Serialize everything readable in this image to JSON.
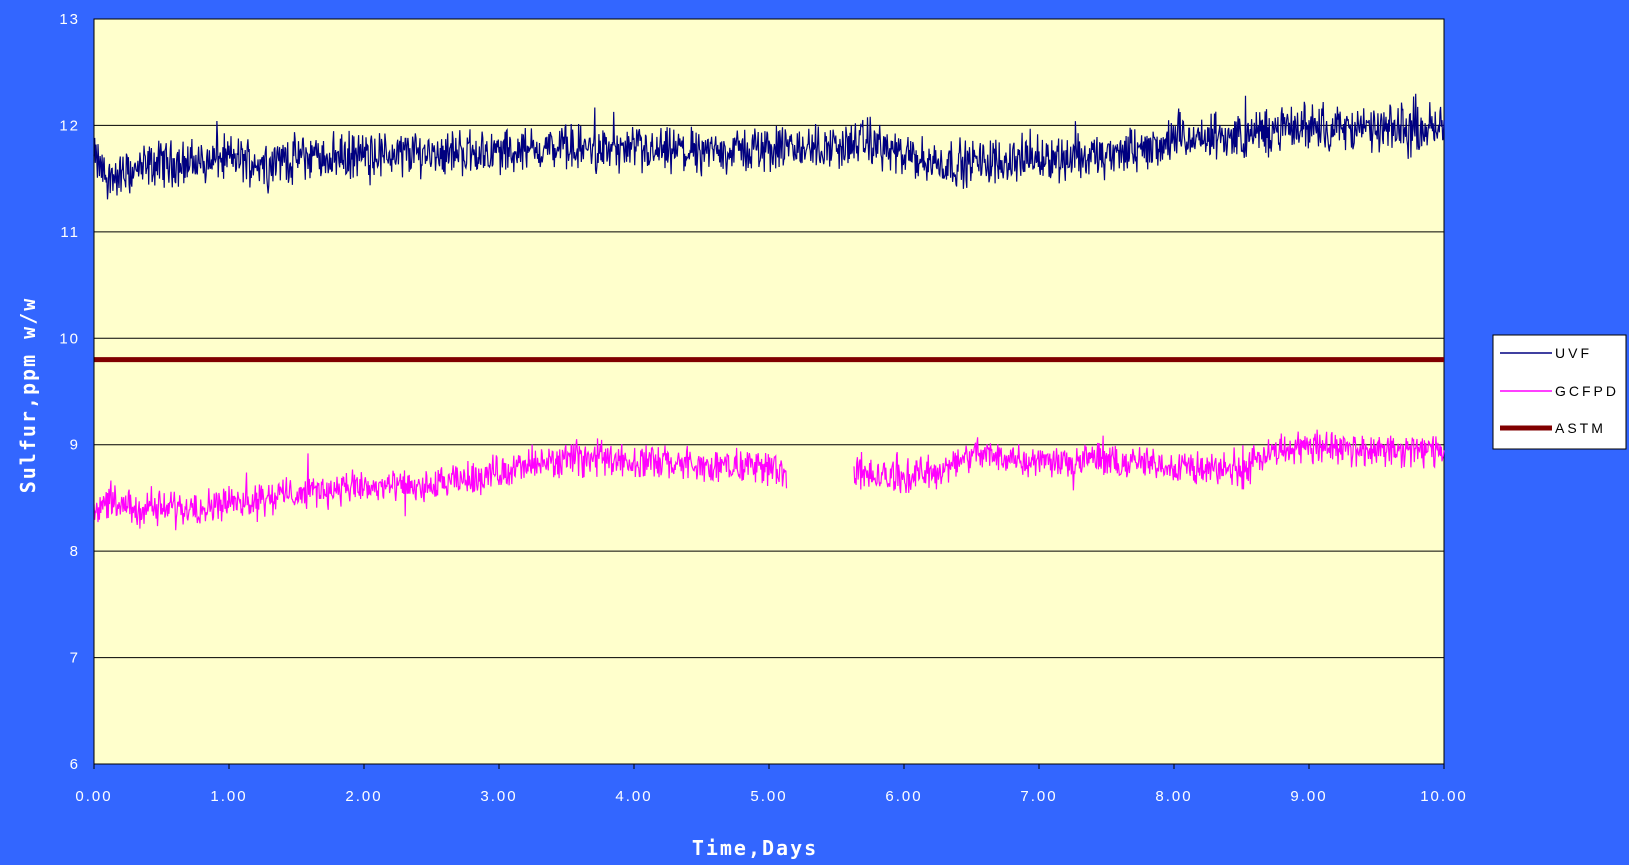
{
  "chart_data": {
    "type": "line",
    "title": "",
    "xlabel": "Time,Days",
    "ylabel": "Sulfur,ppm w/w",
    "xlim": [
      0,
      10
    ],
    "ylim": [
      6,
      13
    ],
    "x_ticks": [
      "0.00",
      "1.00",
      "2.00",
      "3.00",
      "4.00",
      "5.00",
      "6.00",
      "7.00",
      "8.00",
      "9.00",
      "10.00"
    ],
    "y_ticks": [
      "13",
      "12",
      "11",
      "10",
      "9",
      "8",
      "7",
      "6"
    ],
    "grid": "horizontal",
    "legend_position": "right",
    "colors": {
      "background": "#3366ff",
      "plot_area": "#ffffcc",
      "UVF": "#000080",
      "GCFPD": "#ff00ff",
      "ASTM": "#800000"
    },
    "series": [
      {
        "name": "UVF",
        "x": [
          0.0,
          0.1,
          0.25,
          0.5,
          0.75,
          1.0,
          1.25,
          1.5,
          2.0,
          2.5,
          3.0,
          3.5,
          4.0,
          4.5,
          5.0,
          5.5,
          5.75,
          6.0,
          6.25,
          6.5,
          7.0,
          7.5,
          8.0,
          8.5,
          9.0,
          9.5,
          10.0
        ],
        "values": [
          11.7,
          11.5,
          11.55,
          11.65,
          11.65,
          11.7,
          11.65,
          11.7,
          11.72,
          11.75,
          11.75,
          11.8,
          11.75,
          11.75,
          11.78,
          11.8,
          11.85,
          11.7,
          11.65,
          11.65,
          11.7,
          11.7,
          11.85,
          11.9,
          12.0,
          11.95,
          12.0
        ]
      },
      {
        "name": "GCFPD",
        "segments": [
          {
            "x": [
              0.0,
              0.25,
              0.5,
              1.0,
              1.5,
              2.0,
              2.5,
              3.0,
              3.25,
              3.5,
              3.75,
              4.0,
              4.5,
              5.0,
              5.13
            ],
            "values": [
              8.45,
              8.4,
              8.4,
              8.45,
              8.55,
              8.6,
              8.6,
              8.75,
              8.8,
              8.85,
              8.9,
              8.85,
              8.8,
              8.8,
              8.75
            ]
          },
          {
            "x": [
              5.63,
              5.75,
              6.0,
              6.25,
              6.5,
              6.75,
              7.0,
              7.5,
              8.0,
              8.5,
              8.75,
              9.0,
              9.5,
              10.0
            ],
            "values": [
              8.75,
              8.7,
              8.7,
              8.75,
              8.9,
              8.9,
              8.85,
              8.85,
              8.8,
              8.75,
              8.95,
              9.0,
              8.95,
              8.95
            ]
          }
        ]
      },
      {
        "name": "ASTM",
        "x": [
          0,
          10
        ],
        "values": [
          9.8,
          9.8
        ]
      }
    ]
  }
}
